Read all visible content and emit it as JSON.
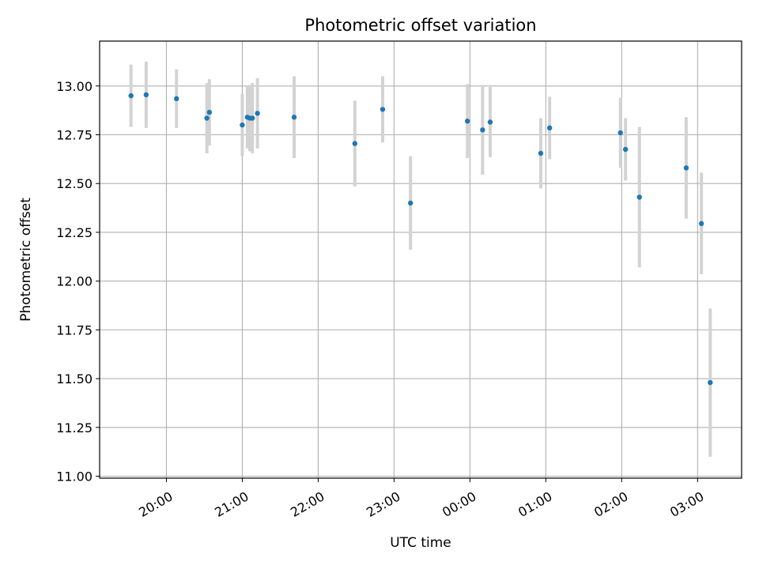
{
  "chart_data": {
    "type": "scatter",
    "title": "Photometric offset variation",
    "xlabel": "UTC time",
    "ylabel": "Photometric offset",
    "x_tick_labels": [
      "20:00",
      "21:00",
      "22:00",
      "23:00",
      "00:00",
      "01:00",
      "02:00",
      "03:00"
    ],
    "x_tick_hours": [
      0,
      1,
      2,
      3,
      4,
      5,
      6,
      7
    ],
    "x_start_label": "20:00",
    "xlim_hours": [
      -0.88,
      7.58
    ],
    "ylim": [
      10.99,
      13.23
    ],
    "y_ticks": [
      11.0,
      11.25,
      11.5,
      11.75,
      12.0,
      12.25,
      12.5,
      12.75,
      13.0
    ],
    "y_tick_labels": [
      "11.00",
      "11.25",
      "11.50",
      "11.75",
      "12.00",
      "12.25",
      "12.50",
      "12.75",
      "13.00"
    ],
    "grid": true,
    "point_color": "#1f77b4",
    "errorbar_color": "#d3d3d3",
    "points": [
      {
        "x": "19:32",
        "y": 12.95,
        "yerr": 0.16
      },
      {
        "x": "19:44",
        "y": 12.955,
        "yerr": 0.17
      },
      {
        "x": "20:08",
        "y": 12.935,
        "yerr": 0.15
      },
      {
        "x": "20:32",
        "y": 12.835,
        "yerr": 0.18
      },
      {
        "x": "20:34",
        "y": 12.865,
        "yerr": 0.17
      },
      {
        "x": "21:00",
        "y": 12.8,
        "yerr": 0.16
      },
      {
        "x": "21:04",
        "y": 12.84,
        "yerr": 0.16
      },
      {
        "x": "21:06",
        "y": 12.835,
        "yerr": 0.17
      },
      {
        "x": "21:08",
        "y": 12.835,
        "yerr": 0.18
      },
      {
        "x": "21:12",
        "y": 12.86,
        "yerr": 0.18
      },
      {
        "x": "21:41",
        "y": 12.84,
        "yerr": 0.21
      },
      {
        "x": "22:29",
        "y": 12.705,
        "yerr": 0.22
      },
      {
        "x": "22:51",
        "y": 12.88,
        "yerr": 0.17
      },
      {
        "x": "23:13",
        "y": 12.4,
        "yerr": 0.24
      },
      {
        "x": "23:58",
        "y": 12.82,
        "yerr": 0.19
      },
      {
        "x": "00:10",
        "y": 12.775,
        "yerr": 0.23
      },
      {
        "x": "00:16",
        "y": 12.815,
        "yerr": 0.18
      },
      {
        "x": "00:56",
        "y": 12.655,
        "yerr": 0.18
      },
      {
        "x": "01:03",
        "y": 12.785,
        "yerr": 0.16
      },
      {
        "x": "01:59",
        "y": 12.76,
        "yerr": 0.18
      },
      {
        "x": "02:03",
        "y": 12.675,
        "yerr": 0.16
      },
      {
        "x": "02:14",
        "y": 12.43,
        "yerr": 0.36
      },
      {
        "x": "02:51",
        "y": 12.58,
        "yerr": 0.26
      },
      {
        "x": "03:03",
        "y": 12.295,
        "yerr": 0.26
      },
      {
        "x": "03:10",
        "y": 11.48,
        "yerr": 0.38
      }
    ]
  }
}
